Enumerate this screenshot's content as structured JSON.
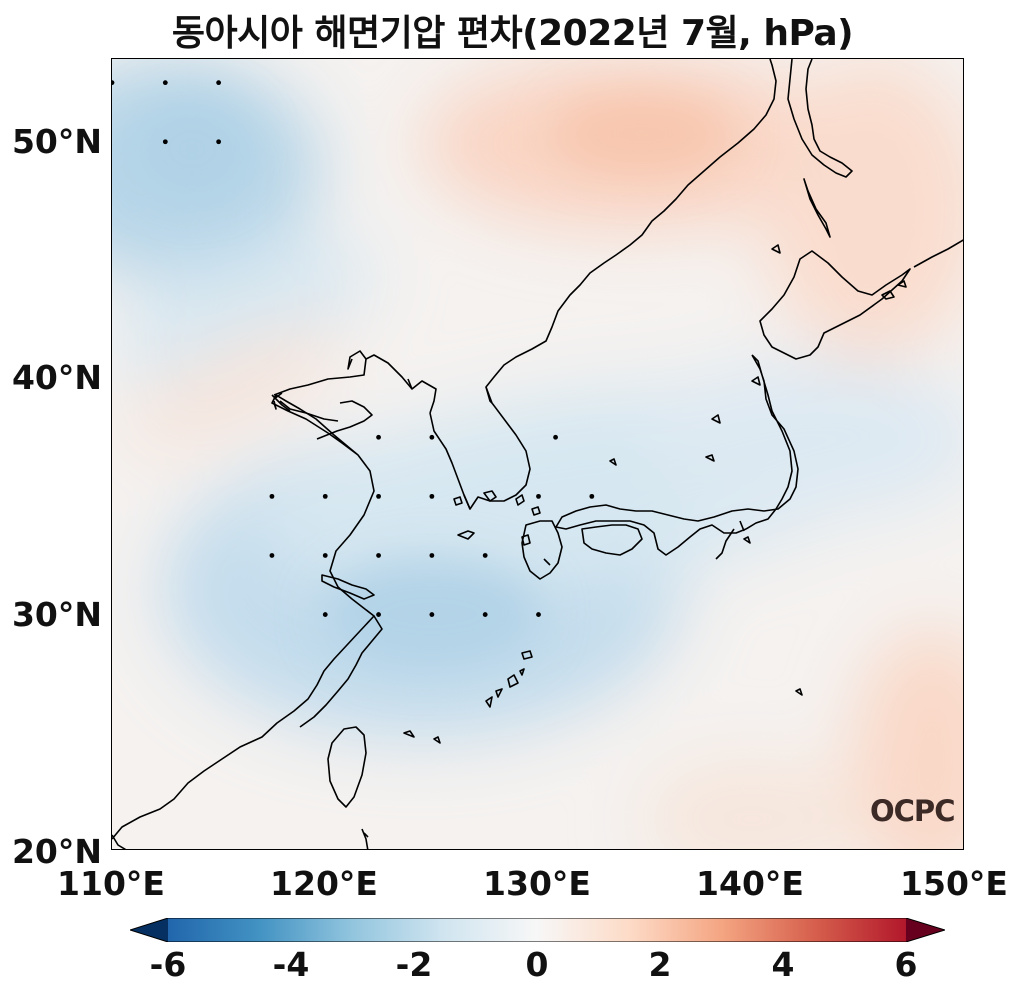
{
  "title": "동아시아 해면기압 편차(2022년 7월, hPa)",
  "map": {
    "region": "East Asia",
    "lon_range": [
      110,
      150
    ],
    "lat_range": [
      20,
      53.5
    ],
    "lat_labels": [
      "50°N",
      "40°N",
      "30°N",
      "20°N"
    ],
    "lon_labels": [
      "110°E",
      "120°E",
      "130°E",
      "140°E",
      "150°E"
    ],
    "variable": "sea level pressure anomaly",
    "units": "hPa",
    "colormap": "RdBu_r",
    "significance_marker": "dot",
    "significance_points": [
      [
        110,
        52.5
      ],
      [
        112.5,
        52.5
      ],
      [
        115,
        52.5
      ],
      [
        112.5,
        50
      ],
      [
        115,
        50
      ],
      [
        122.5,
        37.5
      ],
      [
        125,
        37.5
      ],
      [
        130.8,
        37.5
      ],
      [
        117.5,
        35
      ],
      [
        120,
        35
      ],
      [
        122.5,
        35
      ],
      [
        125,
        35
      ],
      [
        130,
        35
      ],
      [
        132.5,
        35
      ],
      [
        117.5,
        32.5
      ],
      [
        120,
        32.5
      ],
      [
        122.5,
        32.5
      ],
      [
        125,
        32.5
      ],
      [
        127.5,
        32.5
      ],
      [
        120,
        30
      ],
      [
        122.5,
        30
      ],
      [
        125,
        30
      ],
      [
        127.5,
        30
      ],
      [
        130,
        30
      ]
    ]
  },
  "colorbar": {
    "ticks": [
      "-6",
      "-4",
      "-2",
      "0",
      "2",
      "4",
      "6"
    ],
    "range": [
      -6,
      6
    ],
    "extend": "both",
    "colors": [
      "#053061",
      "#2166ac",
      "#4393c3",
      "#92c5de",
      "#d1e5f0",
      "#f7f7f7",
      "#fddbc7",
      "#f4a582",
      "#d6604d",
      "#b2182b",
      "#67001f"
    ]
  },
  "logo": "OCPC"
}
